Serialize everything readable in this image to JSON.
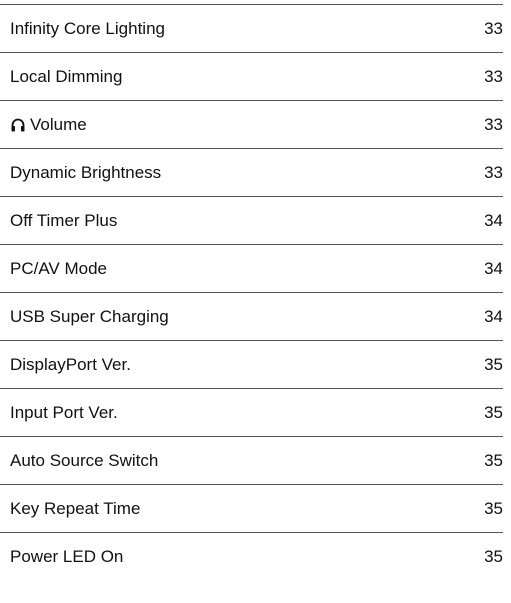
{
  "toc": {
    "items": [
      {
        "title": "Infinity Core Lighting",
        "page": "33"
      },
      {
        "title": "Local Dimming",
        "page": "33"
      },
      {
        "title": "Volume",
        "page": "33",
        "icon": "headphones"
      },
      {
        "title": "Dynamic Brightness",
        "page": "33"
      },
      {
        "title": "Off Timer Plus",
        "page": "34"
      },
      {
        "title": "PC/AV Mode",
        "page": "34"
      },
      {
        "title": "USB Super Charging",
        "page": "34"
      },
      {
        "title": "DisplayPort Ver.",
        "page": "35"
      },
      {
        "title": "Input Port Ver.",
        "page": "35"
      },
      {
        "title": "Auto Source Switch",
        "page": "35"
      },
      {
        "title": "Key Repeat Time",
        "page": "35"
      },
      {
        "title": "Power LED On",
        "page": "35"
      }
    ]
  }
}
